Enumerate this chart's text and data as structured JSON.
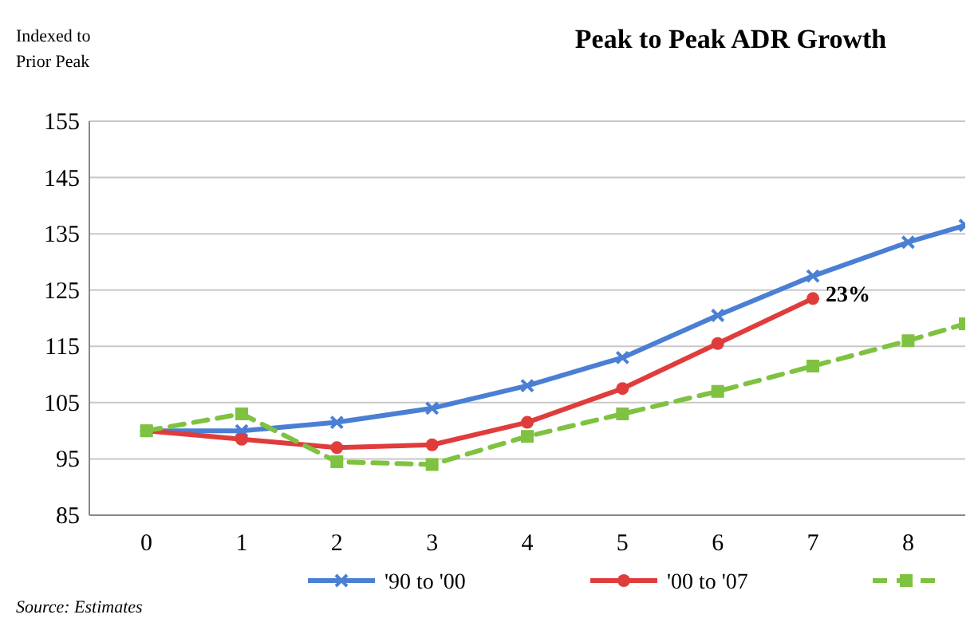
{
  "chart_data": {
    "type": "line",
    "title": "Peak to Peak ADR Growth",
    "ylabel": "Indexed to Prior Peak",
    "xlim": [
      -0.6,
      8.6
    ],
    "xticks": [
      0,
      1,
      2,
      3,
      4,
      5,
      6,
      7,
      8
    ],
    "ylim": [
      85,
      155
    ],
    "yticks": [
      85,
      95,
      105,
      115,
      125,
      135,
      145,
      155
    ],
    "grid": "y",
    "legend": "bottom",
    "series": [
      {
        "name": "'90 to '00",
        "color": "#4a7fd4",
        "marker": "cross",
        "line_style": "solid",
        "x": [
          0,
          1,
          2,
          3,
          4,
          5,
          6,
          7,
          8,
          8.6
        ],
        "values": [
          100,
          100,
          101.5,
          104,
          108,
          113,
          120.5,
          127.5,
          133.5,
          136.5
        ]
      },
      {
        "name": "'00 to '07",
        "color": "#e03c3c",
        "marker": "circle",
        "line_style": "solid",
        "x": [
          0,
          1,
          2,
          3,
          4,
          5,
          6,
          7
        ],
        "values": [
          100,
          98.5,
          97,
          97.5,
          101.5,
          107.5,
          115.5,
          123.5
        ]
      },
      {
        "color": "#7fc241",
        "marker": "square",
        "line_style": "dashed",
        "x": [
          0,
          1,
          2,
          3,
          4,
          5,
          6,
          7,
          8,
          8.6
        ],
        "values": [
          100,
          103,
          94.5,
          94,
          99,
          103,
          107,
          111.5,
          116,
          119
        ]
      }
    ],
    "annotations": [
      {
        "text": "23%",
        "x": 7,
        "y": 123.5
      },
      "Source: Estimates"
    ]
  }
}
